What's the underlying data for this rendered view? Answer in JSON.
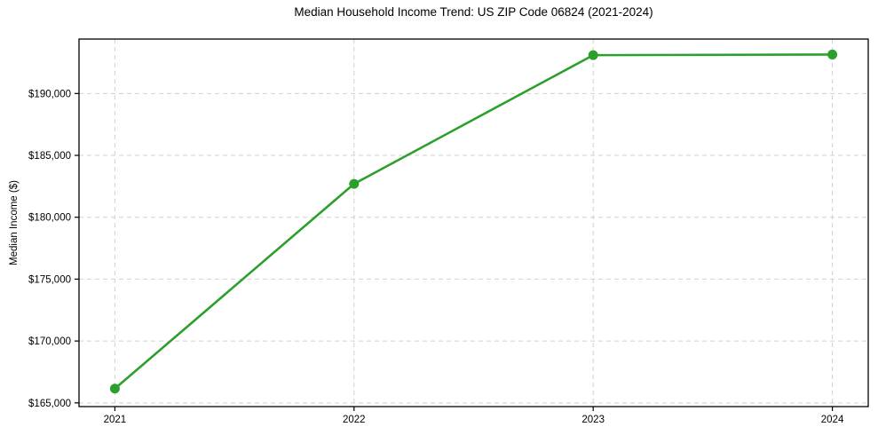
{
  "chart_data": {
    "type": "line",
    "title": "Median Household Income Trend: US ZIP Code 06824 (2021-2024)",
    "xlabel": "",
    "ylabel": "Median Income ($)",
    "x": [
      2021,
      2022,
      2023,
      2024
    ],
    "series": [
      {
        "name": "Median Income ($)",
        "values": [
          166150,
          182700,
          193100,
          193150
        ],
        "color": "#2ca02c",
        "marker": "circle"
      }
    ],
    "xticks": [
      2021,
      2022,
      2023,
      2024
    ],
    "xtick_labels": [
      "2021",
      "2022",
      "2023",
      "2024"
    ],
    "yticks": [
      165000,
      170000,
      175000,
      180000,
      185000,
      190000
    ],
    "ytick_labels": [
      "$165,000",
      "$170,000",
      "$175,000",
      "$180,000",
      "$185,000",
      "$190,000"
    ],
    "xlim": [
      2020.85,
      2024.15
    ],
    "ylim": [
      164700,
      194400
    ],
    "grid": true,
    "grid_style": "dashed",
    "legend": "none",
    "colors": {
      "line": "#2ca02c",
      "grid": "#d0d0d0",
      "axis": "#000000",
      "text": "#000000",
      "background": "#ffffff"
    }
  }
}
